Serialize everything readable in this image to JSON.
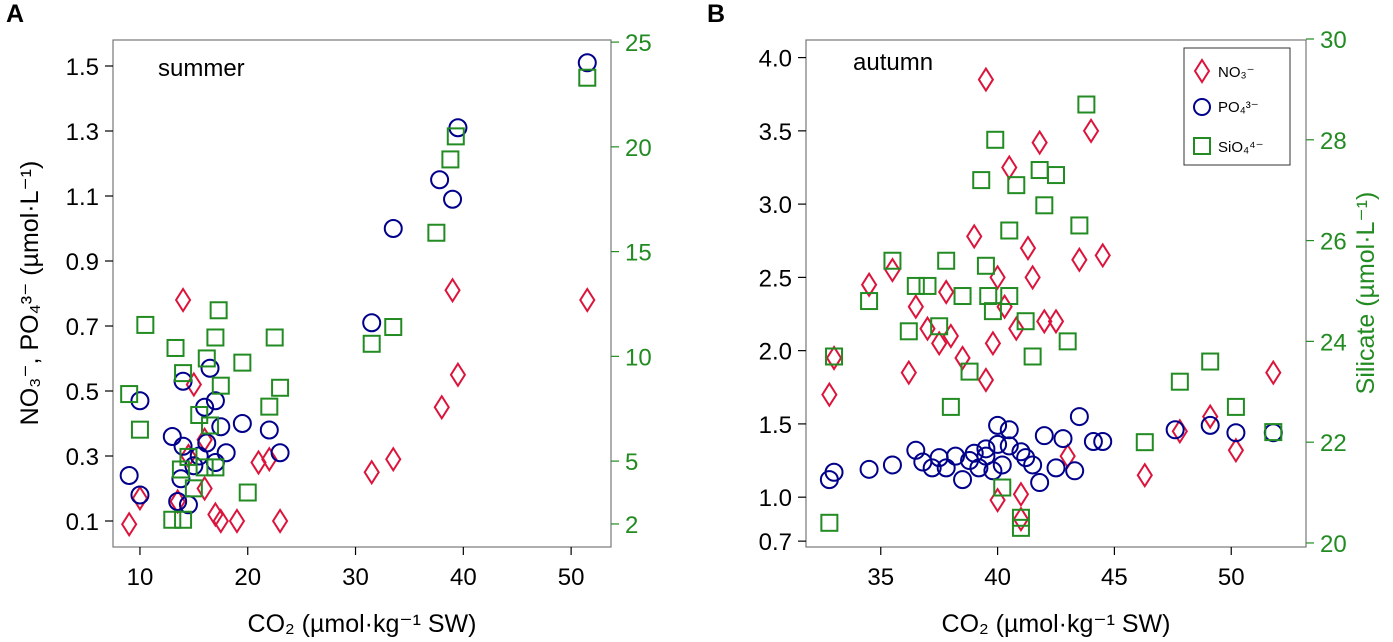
{
  "colors": {
    "no3": "#dc143c",
    "po4": "#00008b",
    "sio4": "#228b22",
    "axis": "#000000",
    "right_axis": "#228b22",
    "frame": "#777777"
  },
  "chart_data": [
    {
      "panel": "A",
      "type": "scatter",
      "title": "summer",
      "xlabel": "CO₂ (µmol·kg⁻¹ SW)",
      "ylabel": "NO₃⁻, PO₄³⁻ (µmol·L⁻¹)",
      "y2label": "",
      "xlim": [
        7.5,
        53.7
      ],
      "ylim": [
        0.02,
        1.58
      ],
      "y2lim": [
        0.9,
        25.1
      ],
      "xticks": [
        "10",
        "20",
        "30",
        "40",
        "50"
      ],
      "yticks": [
        "0.1",
        "0.3",
        "0.5",
        "0.7",
        "0.9",
        "1.1",
        "1.3",
        "1.5"
      ],
      "y2ticks": [
        "2",
        "5",
        "10",
        "15",
        "20",
        "25"
      ],
      "grid": false,
      "series": [
        {
          "name": "NO3-",
          "axis": "left",
          "marker": "diamond",
          "x": [
            9,
            10,
            13.5,
            14,
            14.5,
            15,
            16,
            16,
            17,
            17.5,
            19,
            21,
            22,
            23,
            31.5,
            33.5,
            38,
            39,
            39.5,
            51.5
          ],
          "y": [
            0.09,
            0.17,
            0.16,
            0.78,
            0.3,
            0.52,
            0.2,
            0.35,
            0.12,
            0.1,
            0.1,
            0.28,
            0.29,
            0.1,
            0.25,
            0.29,
            0.45,
            0.81,
            0.55,
            0.78
          ]
        },
        {
          "name": "PO4 3-",
          "axis": "left",
          "marker": "circle",
          "x": [
            9,
            10,
            10,
            13,
            13.5,
            13.8,
            14,
            14,
            14.5,
            15,
            15.5,
            16,
            16.2,
            16.5,
            17,
            17,
            17.5,
            18,
            19.5,
            22,
            23,
            31.5,
            33.5,
            37.8,
            39,
            39.5,
            51.5
          ],
          "y": [
            0.24,
            0.18,
            0.47,
            0.36,
            0.16,
            0.23,
            0.53,
            0.33,
            0.15,
            0.27,
            0.3,
            0.45,
            0.34,
            0.57,
            0.47,
            0.28,
            0.39,
            0.31,
            0.4,
            0.38,
            0.31,
            0.71,
            1.0,
            1.15,
            1.09,
            1.31,
            1.51
          ]
        },
        {
          "name": "SiO4 4-",
          "axis": "right",
          "marker": "square",
          "x": [
            9,
            10,
            10.5,
            13,
            13.3,
            13.8,
            14,
            14,
            14.5,
            15,
            15.5,
            16,
            16.2,
            16.5,
            17,
            17,
            17.3,
            17.5,
            19.5,
            20,
            22,
            22.5,
            23,
            31.5,
            33.5,
            37.5,
            38.8,
            39.3,
            51.5
          ],
          "y": [
            8.2,
            6.5,
            11.5,
            2.2,
            10.4,
            4.6,
            9.2,
            2.2,
            5.2,
            3.7,
            7.2,
            4.7,
            9.9,
            6.7,
            10.9,
            4.7,
            12.2,
            8.6,
            9.7,
            3.5,
            7.6,
            10.9,
            8.5,
            10.6,
            11.4,
            15.9,
            19.4,
            20.5,
            23.3
          ]
        }
      ]
    },
    {
      "panel": "B",
      "type": "scatter",
      "title": "autumn",
      "xlabel": "CO₂ (µmol·kg⁻¹ SW)",
      "ylabel": "",
      "y2label": "Silicate (µmol·L⁻¹)",
      "xlim": [
        31.8,
        53.2
      ],
      "ylim": [
        0.66,
        4.12
      ],
      "y2lim": [
        19.92,
        29.98
      ],
      "xticks": [
        "35",
        "40",
        "45",
        "50"
      ],
      "yticks": [
        "0.7",
        "1.0",
        "1.5",
        "2.0",
        "2.5",
        "3.0",
        "3.5",
        "4.0"
      ],
      "y2ticks": [
        "20",
        "22",
        "24",
        "26",
        "28",
        "30"
      ],
      "grid": false,
      "legend": {
        "position": "top-right",
        "entries": [
          "NO₃⁻",
          "PO₄³⁻",
          "SiO₄⁴⁻"
        ]
      },
      "series": [
        {
          "name": "NO3-",
          "axis": "left",
          "marker": "diamond",
          "x": [
            32.8,
            33,
            34.5,
            35.5,
            36.2,
            36.5,
            37,
            37.5,
            37.8,
            38,
            38.5,
            39,
            39.5,
            39.5,
            39.8,
            40,
            40,
            40.3,
            40.5,
            40.8,
            41,
            41,
            41.3,
            41.5,
            41.8,
            42,
            42.5,
            43,
            43.5,
            44,
            44.5,
            46.3,
            47.8,
            49.1,
            50.2,
            51.8
          ],
          "y": [
            1.7,
            1.95,
            2.45,
            2.55,
            1.85,
            2.3,
            2.15,
            2.05,
            2.4,
            2.1,
            1.95,
            2.78,
            3.85,
            1.8,
            2.05,
            2.5,
            0.98,
            2.3,
            3.25,
            2.15,
            1.02,
            0.85,
            2.7,
            2.5,
            3.42,
            2.2,
            2.2,
            1.28,
            2.62,
            3.5,
            2.65,
            1.15,
            1.45,
            1.55,
            1.32,
            1.85
          ]
        },
        {
          "name": "PO4 3-",
          "axis": "left",
          "marker": "circle",
          "x": [
            32.8,
            33,
            34.5,
            35.5,
            36.5,
            36.8,
            37.2,
            37.5,
            37.8,
            38.2,
            38.5,
            38.8,
            39,
            39.2,
            39.5,
            39.5,
            39.8,
            40,
            40,
            40.2,
            40.5,
            40.5,
            41,
            41.2,
            41.5,
            41.8,
            42,
            42.5,
            42.8,
            43.3,
            43.5,
            44.1,
            44.5,
            47.6,
            49.1,
            50.2,
            51.8
          ],
          "y": [
            1.12,
            1.17,
            1.19,
            1.22,
            1.32,
            1.24,
            1.2,
            1.27,
            1.2,
            1.28,
            1.12,
            1.25,
            1.3,
            1.2,
            1.33,
            1.28,
            1.18,
            1.49,
            1.36,
            1.22,
            1.35,
            1.46,
            1.31,
            1.27,
            1.22,
            1.1,
            1.42,
            1.2,
            1.4,
            1.18,
            1.55,
            1.38,
            1.38,
            1.46,
            1.49,
            1.44,
            1.44
          ]
        },
        {
          "name": "SiO4 4-",
          "axis": "right",
          "marker": "square",
          "x": [
            32.8,
            33,
            34.5,
            35.5,
            36.2,
            36.5,
            37,
            37.5,
            37.8,
            38,
            38.5,
            38.8,
            39.3,
            39.5,
            39.6,
            39.8,
            39.9,
            40.2,
            40.5,
            40.5,
            40.8,
            41,
            41,
            41.2,
            41.5,
            41.8,
            42,
            42.5,
            43,
            43.5,
            43.8,
            46.3,
            47.8,
            49.1,
            50.2,
            51.8
          ],
          "y": [
            20.4,
            23.7,
            24.8,
            25.6,
            24.2,
            25.1,
            25.1,
            24.3,
            25.6,
            22.7,
            24.9,
            23.4,
            27.2,
            25.5,
            24.9,
            24.6,
            28.0,
            21.1,
            26.2,
            24.9,
            27.1,
            20.3,
            20.5,
            24.4,
            23.7,
            27.4,
            26.7,
            27.3,
            24.0,
            26.3,
            28.7,
            22.0,
            23.2,
            23.6,
            22.7,
            22.2
          ]
        }
      ]
    }
  ]
}
